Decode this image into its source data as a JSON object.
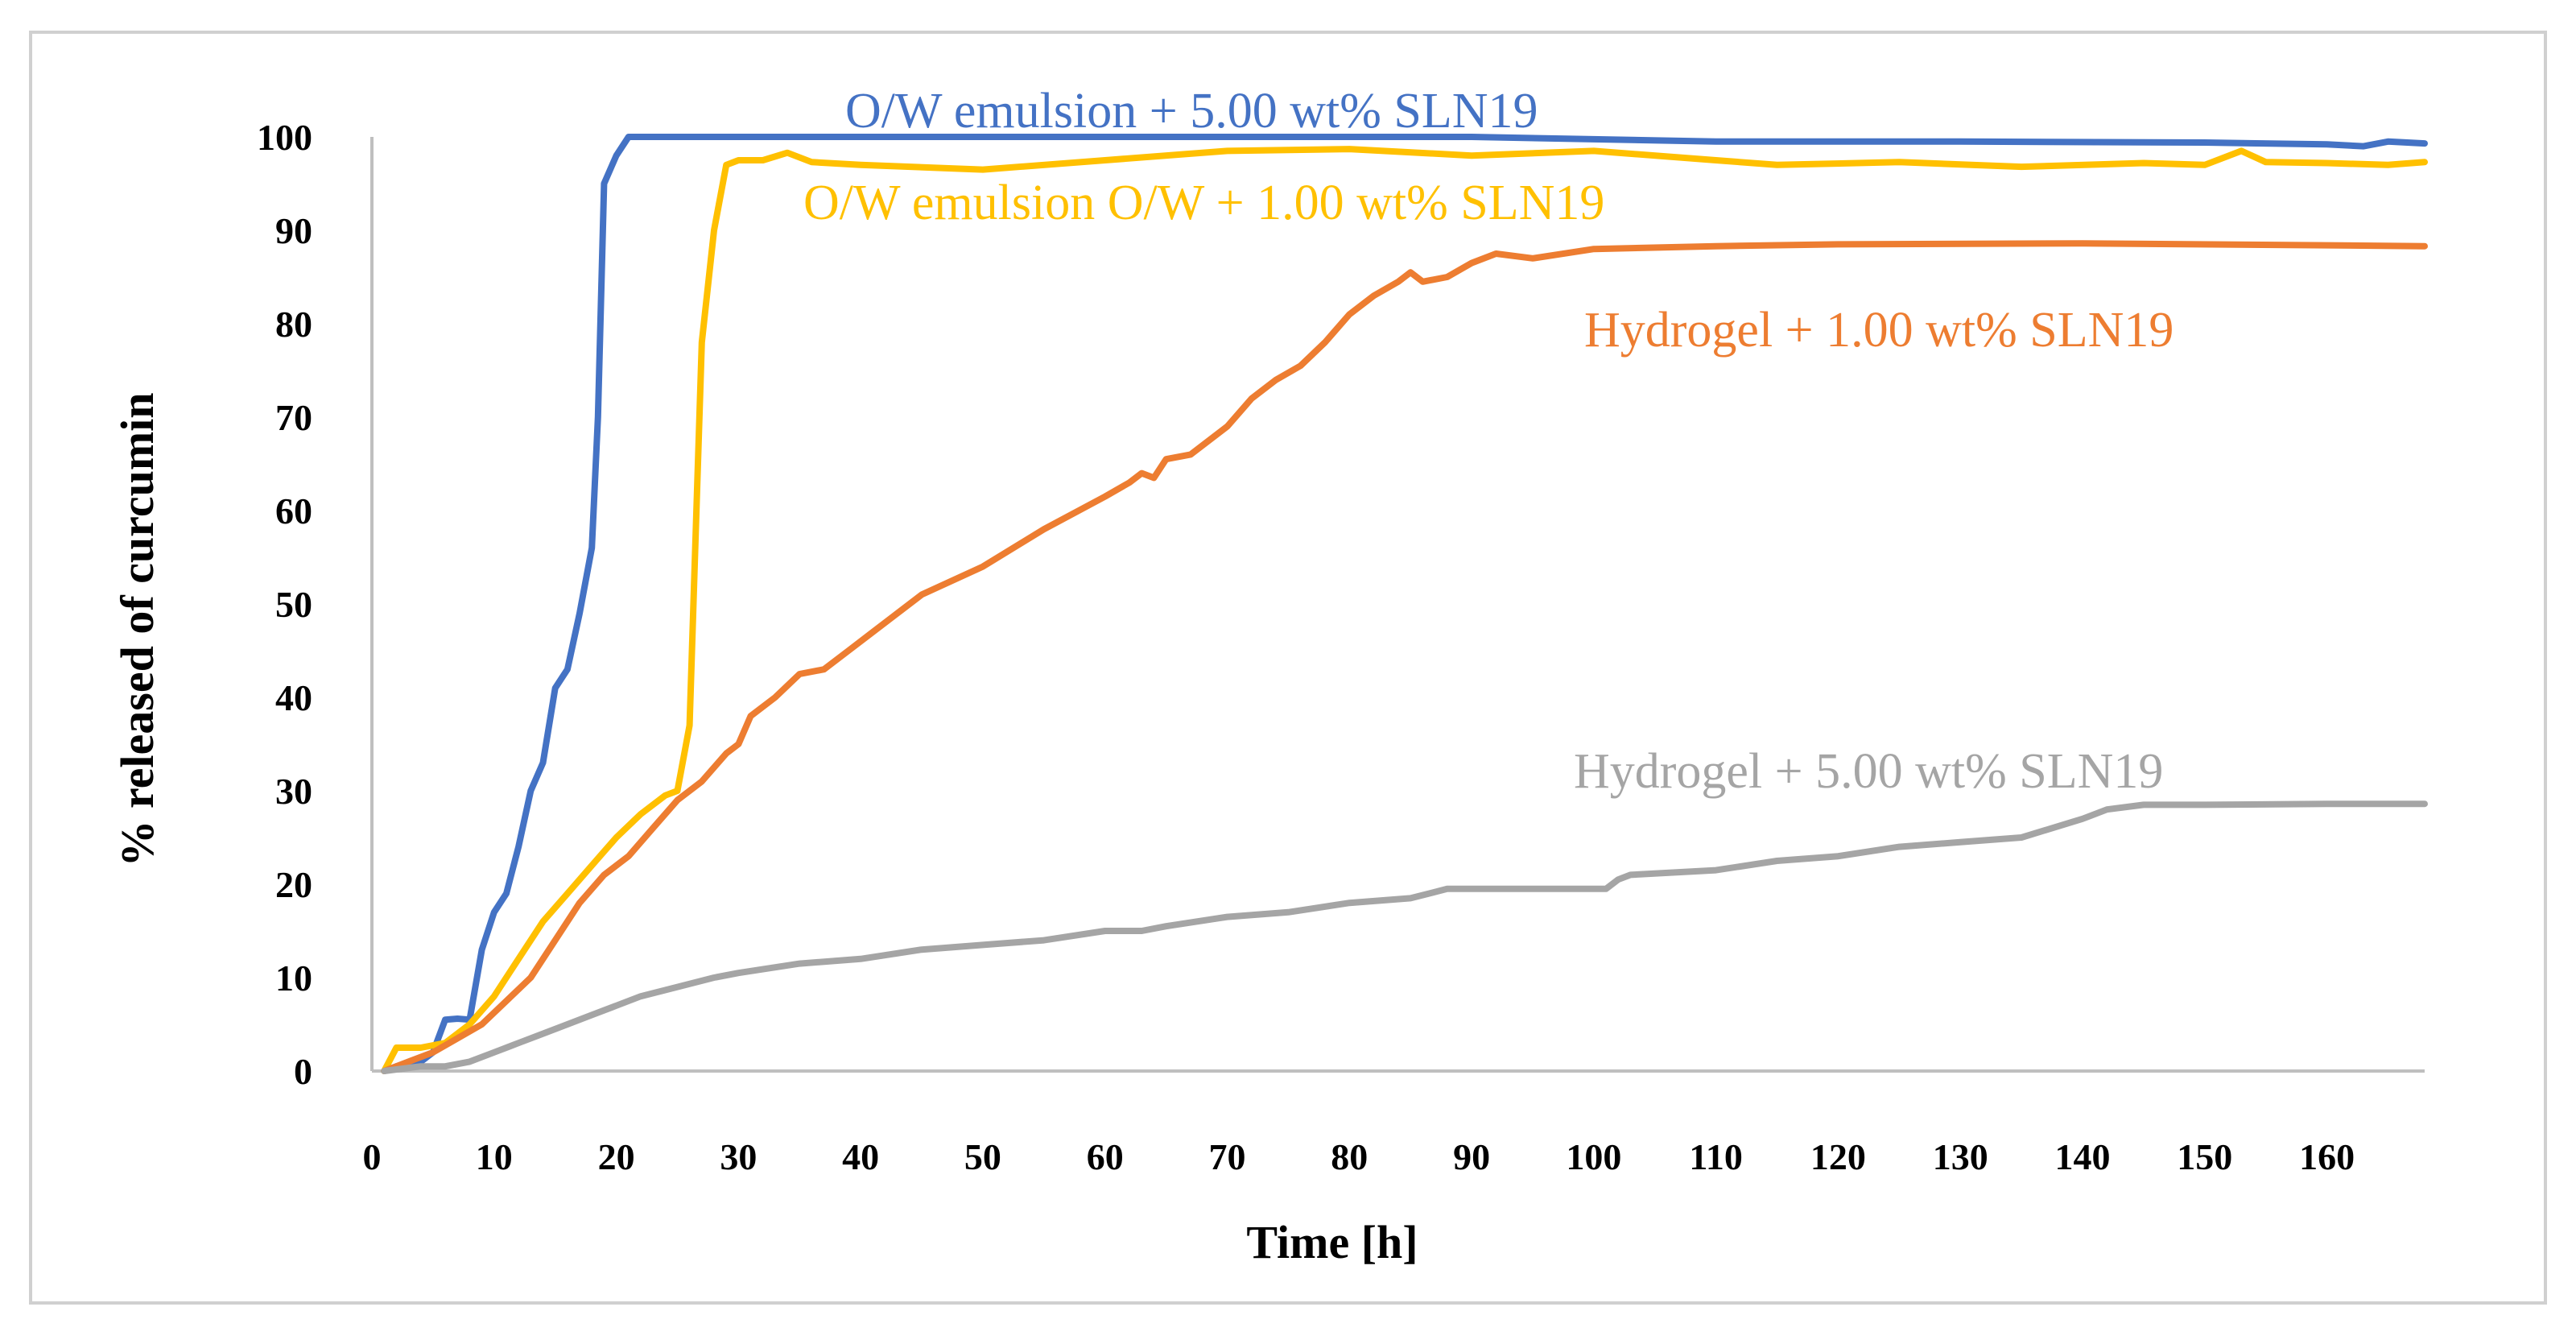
{
  "chart_data": {
    "type": "line",
    "title": "",
    "xlabel": "Time [h]",
    "ylabel": "% released of curcumin",
    "xlim": [
      0,
      168
    ],
    "ylim": [
      0,
      100
    ],
    "xticks": [
      "0",
      "10",
      "20",
      "30",
      "40",
      "50",
      "60",
      "70",
      "80",
      "90",
      "100",
      "110",
      "120",
      "130",
      "140",
      "150",
      "160"
    ],
    "yticks": [
      "0",
      "10",
      "20",
      "30",
      "40",
      "50",
      "60",
      "70",
      "80",
      "90",
      "100"
    ],
    "grid": false,
    "legend": "direct-labels",
    "series": [
      {
        "name": "O/W emulsion + 5.00 wt% SLN19",
        "color": "#4472C4",
        "points": [
          [
            1,
            0
          ],
          [
            2,
            0.5
          ],
          [
            3,
            0.8
          ],
          [
            4,
            1
          ],
          [
            5,
            2
          ],
          [
            6,
            5.5
          ],
          [
            7,
            5.6
          ],
          [
            8,
            5.5
          ],
          [
            9,
            13
          ],
          [
            10,
            17
          ],
          [
            11,
            19
          ],
          [
            12,
            24
          ],
          [
            13,
            30
          ],
          [
            14,
            33
          ],
          [
            15,
            41
          ],
          [
            16,
            43
          ],
          [
            17,
            49
          ],
          [
            18,
            56
          ],
          [
            18.5,
            70
          ],
          [
            19,
            95
          ],
          [
            20,
            98
          ],
          [
            21,
            100
          ],
          [
            30,
            100
          ],
          [
            60,
            100
          ],
          [
            90,
            100
          ],
          [
            110,
            99.5
          ],
          [
            130,
            99.5
          ],
          [
            150,
            99.4
          ],
          [
            160,
            99.2
          ],
          [
            163,
            99.0
          ],
          [
            165,
            99.5
          ],
          [
            168,
            99.3
          ]
        ]
      },
      {
        "name": "O/W emulsion O/W + 1.00 wt% SLN19",
        "color": "#FFC000",
        "points": [
          [
            1,
            0
          ],
          [
            2,
            2.5
          ],
          [
            4,
            2.5
          ],
          [
            6,
            3
          ],
          [
            8,
            5
          ],
          [
            10,
            8
          ],
          [
            12,
            12
          ],
          [
            14,
            16
          ],
          [
            16,
            19
          ],
          [
            18,
            22
          ],
          [
            20,
            25
          ],
          [
            22,
            27.5
          ],
          [
            24,
            29.5
          ],
          [
            25,
            30
          ],
          [
            26,
            37
          ],
          [
            27,
            78
          ],
          [
            28,
            90
          ],
          [
            29,
            97
          ],
          [
            30,
            97.5
          ],
          [
            32,
            97.5
          ],
          [
            34,
            98.3
          ],
          [
            36,
            97.3
          ],
          [
            40,
            97
          ],
          [
            50,
            96.5
          ],
          [
            60,
            97.5
          ],
          [
            70,
            98.5
          ],
          [
            80,
            98.7
          ],
          [
            90,
            98
          ],
          [
            100,
            98.5
          ],
          [
            110,
            97.5
          ],
          [
            115,
            97
          ],
          [
            125,
            97.3
          ],
          [
            135,
            96.8
          ],
          [
            145,
            97.2
          ],
          [
            150,
            97
          ],
          [
            153,
            98.5
          ],
          [
            155,
            97.3
          ],
          [
            160,
            97.2
          ],
          [
            165,
            97
          ],
          [
            168,
            97.3
          ]
        ]
      },
      {
        "name": "Hydrogel + 1.00 wt% SLN19",
        "color": "#ED7D31",
        "points": [
          [
            1,
            0
          ],
          [
            3,
            1
          ],
          [
            5,
            2
          ],
          [
            7,
            3.5
          ],
          [
            9,
            5
          ],
          [
            11,
            7.5
          ],
          [
            13,
            10
          ],
          [
            15,
            14
          ],
          [
            17,
            18
          ],
          [
            19,
            21
          ],
          [
            21,
            23
          ],
          [
            23,
            26
          ],
          [
            25,
            29
          ],
          [
            27,
            31
          ],
          [
            29,
            34
          ],
          [
            30,
            35
          ],
          [
            31,
            38
          ],
          [
            33,
            40
          ],
          [
            35,
            42.5
          ],
          [
            37,
            43
          ],
          [
            39,
            45
          ],
          [
            41,
            47
          ],
          [
            43,
            49
          ],
          [
            45,
            51
          ],
          [
            50,
            54
          ],
          [
            55,
            58
          ],
          [
            60,
            61.5
          ],
          [
            62,
            63
          ],
          [
            63,
            64
          ],
          [
            64,
            63.5
          ],
          [
            65,
            65.5
          ],
          [
            67,
            66
          ],
          [
            70,
            69
          ],
          [
            72,
            72
          ],
          [
            74,
            74
          ],
          [
            76,
            75.5
          ],
          [
            78,
            78
          ],
          [
            80,
            81
          ],
          [
            82,
            83
          ],
          [
            84,
            84.5
          ],
          [
            85,
            85.5
          ],
          [
            86,
            84.5
          ],
          [
            88,
            85
          ],
          [
            90,
            86.5
          ],
          [
            92,
            87.5
          ],
          [
            95,
            87
          ],
          [
            100,
            88
          ],
          [
            110,
            88.3
          ],
          [
            120,
            88.5
          ],
          [
            140,
            88.6
          ],
          [
            160,
            88.4
          ],
          [
            168,
            88.3
          ]
        ]
      },
      {
        "name": "Hydrogel + 5.00 wt% SLN19",
        "color": "#A5A5A5",
        "points": [
          [
            1,
            0
          ],
          [
            4,
            0.5
          ],
          [
            6,
            0.5
          ],
          [
            8,
            1
          ],
          [
            10,
            2
          ],
          [
            12,
            3
          ],
          [
            14,
            4
          ],
          [
            16,
            5
          ],
          [
            18,
            6
          ],
          [
            20,
            7
          ],
          [
            22,
            8
          ],
          [
            25,
            9
          ],
          [
            28,
            10
          ],
          [
            30,
            10.5
          ],
          [
            35,
            11.5
          ],
          [
            40,
            12
          ],
          [
            45,
            13
          ],
          [
            50,
            13.5
          ],
          [
            55,
            14
          ],
          [
            60,
            15
          ],
          [
            63,
            15
          ],
          [
            65,
            15.5
          ],
          [
            70,
            16.5
          ],
          [
            75,
            17
          ],
          [
            80,
            18
          ],
          [
            85,
            18.5
          ],
          [
            88,
            19.5
          ],
          [
            90,
            19.5
          ],
          [
            95,
            19.5
          ],
          [
            101,
            19.5
          ],
          [
            102,
            20.5
          ],
          [
            103,
            21
          ],
          [
            110,
            21.5
          ],
          [
            115,
            22.5
          ],
          [
            120,
            23
          ],
          [
            125,
            24
          ],
          [
            130,
            24.5
          ],
          [
            135,
            25
          ],
          [
            140,
            27
          ],
          [
            142,
            28
          ],
          [
            145,
            28.5
          ],
          [
            150,
            28.5
          ],
          [
            160,
            28.6
          ],
          [
            168,
            28.6
          ]
        ]
      }
    ]
  }
}
